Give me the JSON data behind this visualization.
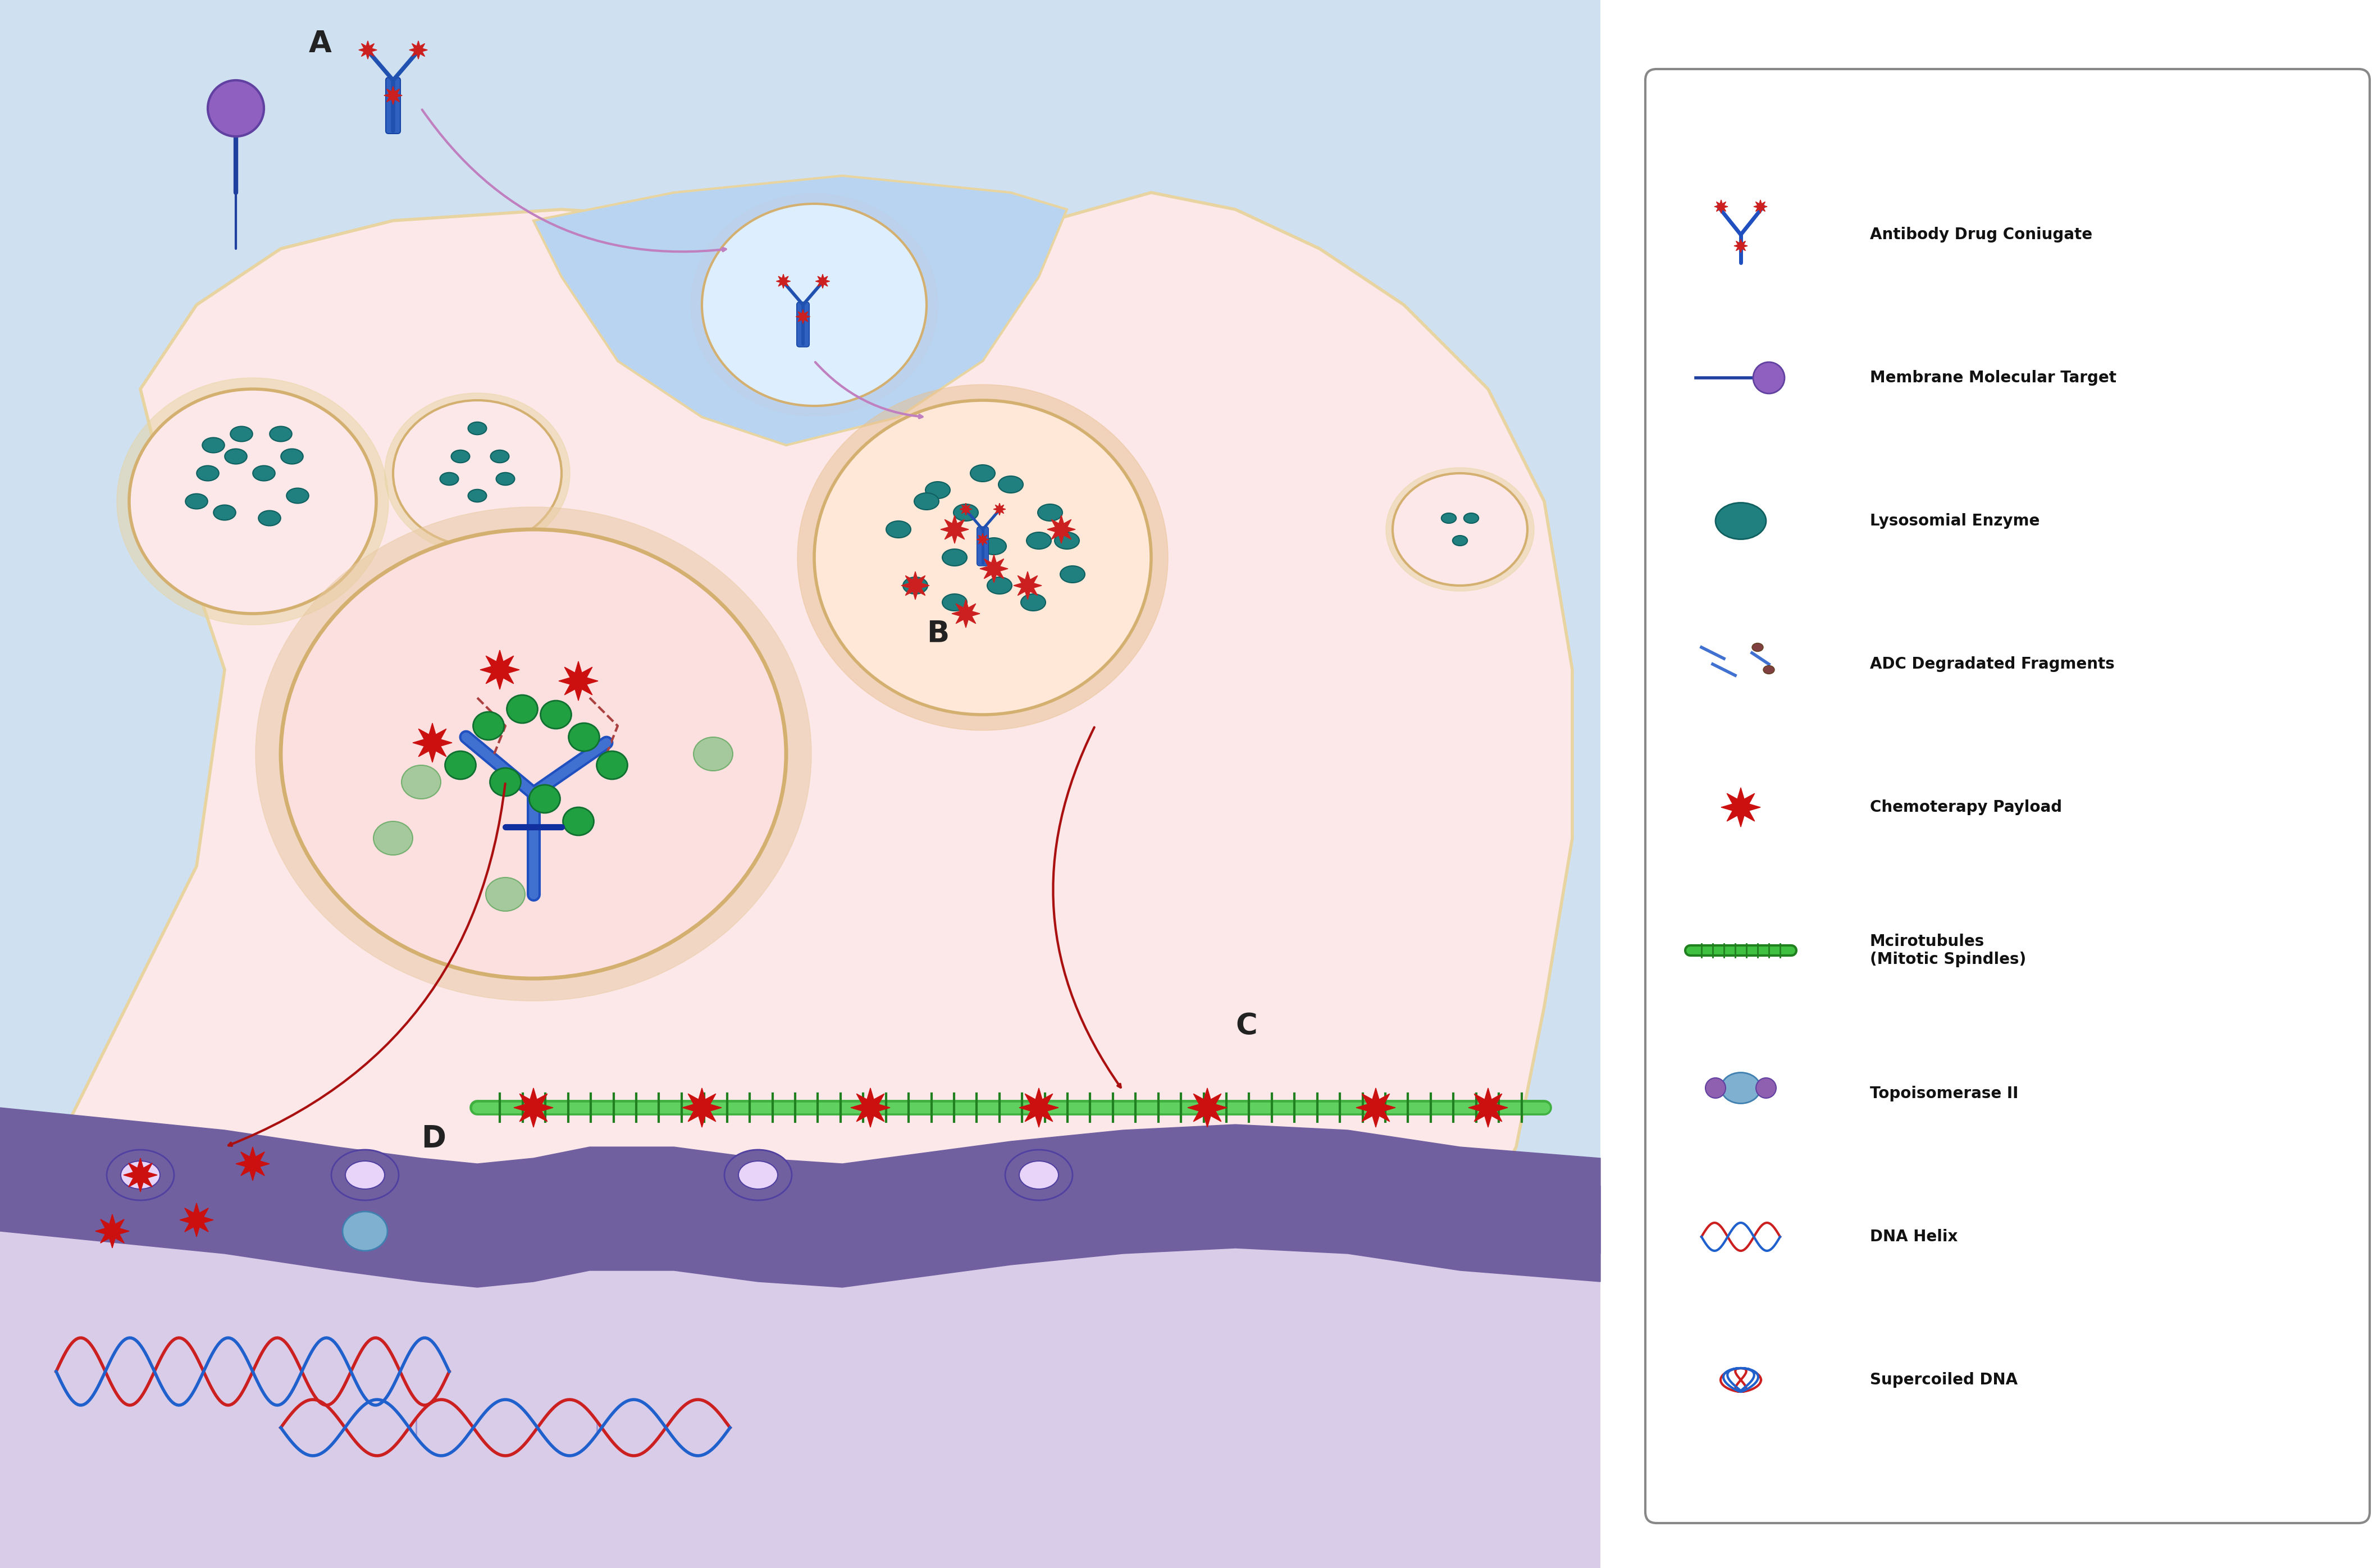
{
  "bg_outer": "#cfe0f0",
  "bg_cell": "#fce8e8",
  "bg_nucleus_area": "#d8c8e8",
  "bg_endo": "#ddeeff",
  "cell_membrane_color": "#e8d4a0",
  "nuclear_membrane_color": "#7060a0",
  "legend_labels": [
    "Antibody Drug Coniugate",
    "Membrane Molecular Target",
    "Lysosomial Enzyme",
    "ADC Degradated Fragments",
    "Chemoterapy Payload",
    "Mcirotubules\n(Mitotic Spindles)",
    "Topoisomerase II",
    "DNA Helix",
    "Supercoiled DNA"
  ],
  "label_A": "A",
  "label_B": "B",
  "label_C": "C",
  "label_D": "D"
}
